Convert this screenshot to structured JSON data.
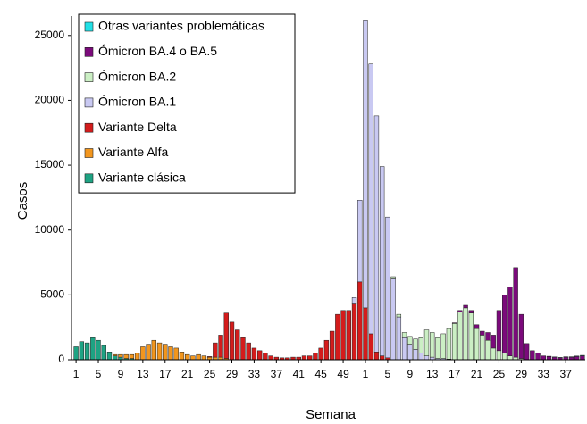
{
  "chart_data": {
    "type": "stacked_bar",
    "x_label": "Semana",
    "y_label": "Casos",
    "categories": [
      "1",
      null,
      null,
      null,
      "5",
      null,
      null,
      null,
      "9",
      null,
      null,
      null,
      "13",
      null,
      null,
      null,
      "17",
      null,
      null,
      null,
      "21",
      null,
      null,
      null,
      "25",
      null,
      null,
      null,
      "29",
      null,
      null,
      null,
      "33",
      null,
      null,
      null,
      "37",
      null,
      null,
      null,
      "41",
      null,
      null,
      null,
      "45",
      null,
      null,
      null,
      "49",
      null,
      null,
      null,
      "1",
      null,
      null,
      null,
      "5",
      null,
      null,
      null,
      "9",
      null,
      null,
      null,
      "13",
      null,
      null,
      null,
      "17",
      null,
      null,
      null,
      "21",
      null,
      null,
      null,
      "25",
      null,
      null,
      null,
      "29",
      null,
      null,
      null,
      "33",
      null,
      null,
      null,
      "37",
      null,
      null,
      null
    ],
    "ylim": [
      0,
      26500
    ],
    "yticks": [
      0,
      5000,
      10000,
      15000,
      20000,
      25000
    ],
    "grid": false,
    "legend": "top-left",
    "series": [
      {
        "name": "Variante clásica",
        "color": "#1ea383",
        "values": [
          1000,
          1400,
          1300,
          1700,
          1500,
          1100,
          600,
          300,
          200,
          100,
          100,
          0,
          0,
          0,
          0,
          0,
          0,
          0,
          0,
          0,
          0,
          0,
          0,
          0,
          0,
          0,
          0,
          0,
          0,
          0,
          0,
          0,
          0,
          0,
          0,
          0,
          0,
          0,
          0,
          0,
          0,
          0,
          0,
          0,
          0,
          0,
          0,
          0,
          0,
          0,
          0,
          0,
          0,
          0,
          0,
          0,
          0,
          0,
          0,
          0,
          0,
          0,
          0,
          0,
          0,
          0,
          0,
          0,
          0,
          0,
          0,
          0,
          0,
          0,
          0,
          0,
          0,
          0,
          0,
          0,
          0,
          0,
          0,
          0,
          0,
          0,
          0,
          0,
          0,
          0,
          0,
          0
        ]
      },
      {
        "name": "Variante Alfa",
        "color": "#f2961e",
        "values": [
          0,
          0,
          0,
          0,
          0,
          0,
          0,
          100,
          200,
          300,
          300,
          500,
          1000,
          1200,
          1500,
          1300,
          1200,
          1000,
          900,
          600,
          400,
          300,
          400,
          300,
          200,
          200,
          200,
          100,
          0,
          0,
          0,
          0,
          0,
          0,
          0,
          0,
          0,
          0,
          0,
          0,
          0,
          0,
          0,
          0,
          0,
          0,
          0,
          0,
          0,
          0,
          0,
          0,
          0,
          0,
          0,
          0,
          0,
          0,
          0,
          0,
          0,
          0,
          0,
          0,
          0,
          0,
          0,
          0,
          0,
          0,
          0,
          0,
          0,
          0,
          0,
          0,
          0,
          0,
          0,
          0,
          0,
          0,
          0,
          0,
          0,
          0,
          0,
          0,
          0,
          0,
          0,
          0
        ]
      },
      {
        "name": "Variante Delta",
        "color": "#d41c1c",
        "values": [
          0,
          0,
          0,
          0,
          0,
          0,
          0,
          0,
          0,
          0,
          0,
          0,
          0,
          0,
          0,
          0,
          0,
          0,
          0,
          0,
          0,
          0,
          0,
          0,
          50,
          1100,
          1700,
          3500,
          2900,
          2300,
          1700,
          1300,
          900,
          700,
          500,
          300,
          200,
          150,
          150,
          200,
          200,
          300,
          300,
          500,
          900,
          1500,
          2200,
          3500,
          3800,
          3800,
          4300,
          6000,
          4000,
          2000,
          600,
          300,
          150,
          0,
          0,
          0,
          0,
          0,
          0,
          0,
          0,
          0,
          0,
          0,
          0,
          0,
          0,
          0,
          0,
          0,
          0,
          0,
          0,
          0,
          0,
          0,
          0,
          0,
          0,
          0,
          0,
          0,
          0,
          0,
          0,
          0,
          0,
          0
        ]
      },
      {
        "name": "Ómicron BA.1",
        "color": "#c9c9f2",
        "values": [
          0,
          0,
          0,
          0,
          0,
          0,
          0,
          0,
          0,
          0,
          0,
          0,
          0,
          0,
          0,
          0,
          0,
          0,
          0,
          0,
          0,
          0,
          0,
          0,
          0,
          0,
          0,
          0,
          0,
          0,
          0,
          0,
          0,
          0,
          0,
          0,
          0,
          0,
          0,
          0,
          0,
          0,
          0,
          0,
          0,
          0,
          0,
          0,
          0,
          0,
          500,
          6300,
          22200,
          20800,
          18200,
          14600,
          10850,
          6300,
          3300,
          1700,
          1200,
          800,
          500,
          300,
          200,
          100,
          100,
          50,
          0,
          0,
          0,
          0,
          0,
          0,
          0,
          0,
          0,
          0,
          0,
          0,
          0,
          0,
          0,
          0,
          0,
          0,
          0,
          0,
          0,
          0,
          0,
          0
        ]
      },
      {
        "name": "Ómicron BA.2",
        "color": "#cbefc4",
        "values": [
          0,
          0,
          0,
          0,
          0,
          0,
          0,
          0,
          0,
          0,
          0,
          0,
          0,
          0,
          0,
          0,
          0,
          0,
          0,
          0,
          0,
          0,
          0,
          0,
          0,
          0,
          0,
          0,
          0,
          0,
          0,
          0,
          0,
          0,
          0,
          0,
          0,
          0,
          0,
          0,
          0,
          0,
          0,
          0,
          0,
          0,
          0,
          0,
          0,
          0,
          0,
          0,
          0,
          0,
          0,
          0,
          0,
          100,
          200,
          400,
          600,
          800,
          1200,
          2000,
          1900,
          1600,
          1900,
          2350,
          2800,
          3700,
          4000,
          3600,
          2400,
          1900,
          1500,
          900,
          700,
          500,
          300,
          200,
          100,
          0,
          0,
          0,
          0,
          0,
          0,
          0,
          0,
          0,
          0,
          0
        ]
      },
      {
        "name": "Ómicron BA.4 o BA.5",
        "color": "#7b0a7b",
        "values": [
          0,
          0,
          0,
          0,
          0,
          0,
          0,
          0,
          0,
          0,
          0,
          0,
          0,
          0,
          0,
          0,
          0,
          0,
          0,
          0,
          0,
          0,
          0,
          0,
          0,
          0,
          0,
          0,
          0,
          0,
          0,
          0,
          0,
          0,
          0,
          0,
          0,
          0,
          0,
          0,
          0,
          0,
          0,
          0,
          0,
          0,
          0,
          0,
          0,
          0,
          0,
          0,
          0,
          0,
          0,
          0,
          0,
          0,
          0,
          0,
          0,
          0,
          0,
          0,
          0,
          0,
          0,
          0,
          50,
          100,
          200,
          200,
          300,
          300,
          600,
          1000,
          3100,
          4500,
          5300,
          6900,
          3400,
          1250,
          700,
          500,
          300,
          250,
          200,
          150,
          200,
          200,
          250,
          300
        ]
      },
      {
        "name": "Otras variantes problemáticas",
        "color": "#22e0e6",
        "values": [
          0,
          0,
          0,
          0,
          0,
          0,
          0,
          0,
          0,
          0,
          0,
          0,
          0,
          0,
          0,
          0,
          0,
          0,
          0,
          0,
          0,
          0,
          0,
          0,
          0,
          0,
          0,
          0,
          0,
          0,
          0,
          0,
          0,
          0,
          0,
          0,
          0,
          0,
          0,
          0,
          0,
          0,
          0,
          0,
          0,
          0,
          0,
          0,
          0,
          0,
          0,
          0,
          0,
          0,
          0,
          0,
          0,
          0,
          0,
          0,
          0,
          0,
          0,
          0,
          0,
          0,
          0,
          0,
          0,
          0,
          0,
          0,
          0,
          0,
          0,
          0,
          0,
          0,
          0,
          0,
          0,
          0,
          0,
          0,
          0,
          20,
          20,
          30,
          30,
          30,
          40,
          40
        ]
      }
    ]
  }
}
